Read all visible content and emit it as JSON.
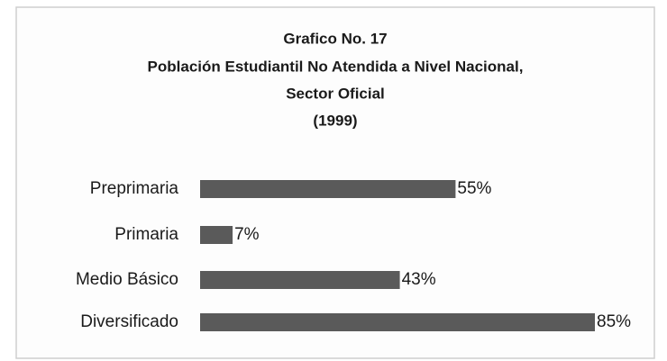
{
  "chart_data": {
    "type": "hbar",
    "title": "Grafico No. 17",
    "subtitle": [
      "Población Estudiantil No Atendida a Nivel Nacional,",
      "Sector Oficial",
      "(1999)"
    ],
    "categories": [
      "Preprimaria",
      "Primaria",
      "Medio Básico",
      "Diversificado"
    ],
    "values": [
      55,
      7,
      43,
      85
    ],
    "value_labels": [
      "55%",
      "7%",
      "43%",
      "85%"
    ],
    "color": "#5a5a5a"
  }
}
